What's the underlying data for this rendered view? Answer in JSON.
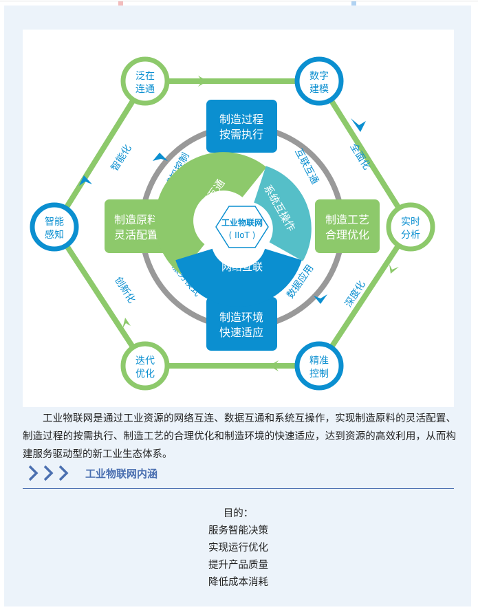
{
  "colors": {
    "green": "#8dc96b",
    "blue": "#0b8fd0",
    "teal": "#55bfc8",
    "gray": "#999999",
    "heading": "#4a6fb0",
    "panel": "#ecf3fa"
  },
  "diagram": {
    "nodes": [
      {
        "line1": "泛在",
        "line2": "连通",
        "color": "green"
      },
      {
        "line1": "数字",
        "line2": "建模",
        "color": "blue"
      },
      {
        "line1": "实时",
        "line2": "分析",
        "color": "green"
      },
      {
        "line1": "精准",
        "line2": "控制",
        "color": "blue"
      },
      {
        "line1": "迭代",
        "line2": "优化",
        "color": "green"
      },
      {
        "line1": "智能",
        "line2": "感知",
        "color": "blue"
      }
    ],
    "edge_labels": [
      "智能化",
      "全面化",
      "深度化",
      "创新化"
    ],
    "boxes": [
      {
        "line1": "制造过程",
        "line2": "按需执行"
      },
      {
        "line1": "制造工艺",
        "line2": "合理优化"
      },
      {
        "line1": "制造环境",
        "line2": "快速适应"
      },
      {
        "line1": "制造原料",
        "line2": "灵活配置"
      }
    ],
    "ring_labels": [
      "感知控制",
      "互联互通",
      "数据应用",
      "服务模式"
    ],
    "segments": [
      "数据互通",
      "系统互操作",
      "网络互联"
    ],
    "center": {
      "line1": "工业物联网",
      "line2": "( IIoT )"
    }
  },
  "paragraph": "工业物联网是通过工业资源的网络互连、数据互通和系统互操作，实现制造原料的灵活配置、制造过程的按需执行、制造工艺的合理优化和制造环境的快速适应，达到资源的高效利用，从而构建服务驱动型的新工业生态体系。",
  "section": {
    "title": "工业物联网内涵",
    "icon": "triple-chevron-right-icon"
  },
  "purpose": {
    "label": "目的：",
    "items": [
      "服务智能决策",
      "实现运行优化",
      "提升产品质量",
      "降低成本消耗"
    ]
  }
}
